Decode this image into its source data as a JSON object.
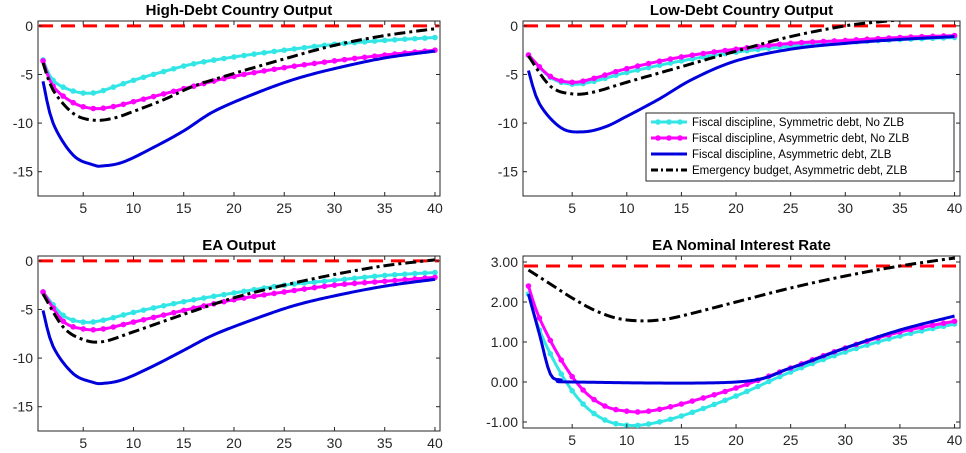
{
  "chart_data": [
    {
      "type": "line",
      "title": "High-Debt Country Output",
      "xlim": [
        0.5,
        40.5
      ],
      "ylim": [
        -17.5,
        0.5
      ],
      "xticks": [
        5,
        10,
        15,
        20,
        25,
        30,
        35,
        40
      ],
      "yticks": [
        0,
        -5,
        -10,
        -15
      ],
      "ytick_labels": [
        "0",
        "-5",
        "-10",
        "-15"
      ],
      "reference_line": {
        "y": 0,
        "color": "#ff0000",
        "style": "dashed"
      },
      "series": [
        {
          "name": "Fiscal discipline, Symmetric debt, No ZLB",
          "color": "#33e6e6",
          "markers": true,
          "points": [
            [
              1,
              -3.5
            ],
            [
              2,
              -5.6
            ],
            [
              4,
              -6.7
            ],
            [
              6,
              -6.9
            ],
            [
              8,
              -6.3
            ],
            [
              10,
              -5.6
            ],
            [
              13,
              -4.7
            ],
            [
              16,
              -3.9
            ],
            [
              20,
              -3.2
            ],
            [
              25,
              -2.5
            ],
            [
              30,
              -1.9
            ],
            [
              35,
              -1.5
            ],
            [
              40,
              -1.2
            ]
          ]
        },
        {
          "name": "Fiscal discipline, Asymmetric debt, No ZLB",
          "color": "#ff00ff",
          "markers": true,
          "points": [
            [
              1,
              -3.6
            ],
            [
              2,
              -6.2
            ],
            [
              4,
              -7.9
            ],
            [
              6,
              -8.5
            ],
            [
              8,
              -8.3
            ],
            [
              10,
              -7.8
            ],
            [
              13,
              -7.0
            ],
            [
              16,
              -6.2
            ],
            [
              20,
              -5.2
            ],
            [
              25,
              -4.3
            ],
            [
              30,
              -3.6
            ],
            [
              35,
              -3.0
            ],
            [
              40,
              -2.5
            ]
          ]
        },
        {
          "name": "Fiscal discipline, Asymmetric debt, ZLB",
          "color": "#0000dd",
          "markers": false,
          "points": [
            [
              1,
              -5.7
            ],
            [
              2,
              -10.0
            ],
            [
              4,
              -13.3
            ],
            [
              6,
              -14.3
            ],
            [
              7,
              -14.4
            ],
            [
              9,
              -14.0
            ],
            [
              12,
              -12.5
            ],
            [
              15,
              -10.8
            ],
            [
              18,
              -8.8
            ],
            [
              22,
              -7.0
            ],
            [
              26,
              -5.5
            ],
            [
              30,
              -4.4
            ],
            [
              35,
              -3.3
            ],
            [
              40,
              -2.6
            ]
          ]
        },
        {
          "name": "Emergency budget, Asymmetric debt, ZLB",
          "color": "#000000",
          "markers": false,
          "points": [
            [
              1,
              -3.8
            ],
            [
              2,
              -6.6
            ],
            [
              4,
              -9.0
            ],
            [
              6,
              -9.7
            ],
            [
              8,
              -9.5
            ],
            [
              10,
              -8.8
            ],
            [
              13,
              -7.6
            ],
            [
              16,
              -6.2
            ],
            [
              20,
              -4.9
            ],
            [
              25,
              -3.4
            ],
            [
              30,
              -2.0
            ],
            [
              35,
              -1.0
            ],
            [
              40,
              -0.3
            ]
          ]
        }
      ]
    },
    {
      "type": "line",
      "title": "Low-Debt Country Output",
      "xlim": [
        0.5,
        40.5
      ],
      "ylim": [
        -17.5,
        0.5
      ],
      "xticks": [
        5,
        10,
        15,
        20,
        25,
        30,
        35,
        40
      ],
      "yticks": [
        0,
        -5,
        -10,
        -15
      ],
      "ytick_labels": [
        "0",
        "-5",
        "-10",
        "-15"
      ],
      "reference_line": {
        "y": 0,
        "color": "#ff0000",
        "style": "dashed"
      },
      "legend": {
        "placement": "center-right",
        "entries": [
          "Fiscal discipline, Symmetric debt, No ZLB",
          "Fiscal discipline, Asymmetric debt, No ZLB",
          "Fiscal discipline, Asymmetric debt, ZLB",
          "Emergency budget, Asymmetric debt, ZLB"
        ]
      },
      "series": [
        {
          "name": "Fiscal discipline, Symmetric debt, No ZLB",
          "color": "#33e6e6",
          "markers": true,
          "points": [
            [
              1,
              -3.0
            ],
            [
              3,
              -5.3
            ],
            [
              5,
              -6.0
            ],
            [
              7,
              -5.7
            ],
            [
              10,
              -4.8
            ],
            [
              15,
              -3.6
            ],
            [
              20,
              -2.7
            ],
            [
              25,
              -2.1
            ],
            [
              30,
              -1.7
            ],
            [
              35,
              -1.4
            ],
            [
              40,
              -1.2
            ]
          ]
        },
        {
          "name": "Fiscal discipline, Asymmetric debt, No ZLB",
          "color": "#ff00ff",
          "markers": true,
          "points": [
            [
              1,
              -3.0
            ],
            [
              3,
              -5.2
            ],
            [
              5,
              -5.8
            ],
            [
              7,
              -5.4
            ],
            [
              10,
              -4.4
            ],
            [
              15,
              -3.2
            ],
            [
              20,
              -2.4
            ],
            [
              25,
              -1.8
            ],
            [
              30,
              -1.5
            ],
            [
              35,
              -1.2
            ],
            [
              40,
              -1.0
            ]
          ]
        },
        {
          "name": "Fiscal discipline, Asymmetric debt, ZLB",
          "color": "#0000dd",
          "markers": false,
          "points": [
            [
              1,
              -4.6
            ],
            [
              2,
              -8.0
            ],
            [
              4,
              -10.5
            ],
            [
              6,
              -10.9
            ],
            [
              8,
              -10.4
            ],
            [
              10,
              -9.3
            ],
            [
              13,
              -7.5
            ],
            [
              16,
              -5.5
            ],
            [
              20,
              -3.6
            ],
            [
              25,
              -2.4
            ],
            [
              30,
              -1.8
            ],
            [
              35,
              -1.4
            ],
            [
              40,
              -1.1
            ]
          ]
        },
        {
          "name": "Emergency budget, Asymmetric debt, ZLB",
          "color": "#000000",
          "markers": false,
          "points": [
            [
              1,
              -3.1
            ],
            [
              3,
              -6.2
            ],
            [
              5,
              -7.0
            ],
            [
              7,
              -6.8
            ],
            [
              10,
              -5.8
            ],
            [
              15,
              -4.2
            ],
            [
              20,
              -2.6
            ],
            [
              25,
              -1.1
            ],
            [
              30,
              0.0
            ],
            [
              33,
              0.4
            ],
            [
              35,
              0.6
            ],
            [
              40,
              0.9
            ]
          ]
        }
      ]
    },
    {
      "type": "line",
      "title": "EA Output",
      "xlim": [
        0.5,
        40.5
      ],
      "ylim": [
        -17.5,
        0.5
      ],
      "xticks": [
        5,
        10,
        15,
        20,
        25,
        30,
        35,
        40
      ],
      "yticks": [
        0,
        -5,
        -10,
        -15
      ],
      "ytick_labels": [
        "0",
        "-5",
        "-10",
        "-15"
      ],
      "reference_line": {
        "y": 0,
        "color": "#ff0000",
        "style": "dashed"
      },
      "series": [
        {
          "name": "Fiscal discipline, Symmetric debt, No ZLB",
          "color": "#33e6e6",
          "markers": true,
          "points": [
            [
              1,
              -3.2
            ],
            [
              3,
              -5.6
            ],
            [
              5,
              -6.3
            ],
            [
              7,
              -6.1
            ],
            [
              10,
              -5.3
            ],
            [
              15,
              -4.2
            ],
            [
              20,
              -3.3
            ],
            [
              25,
              -2.5
            ],
            [
              30,
              -2.0
            ],
            [
              35,
              -1.5
            ],
            [
              40,
              -1.2
            ]
          ]
        },
        {
          "name": "Fiscal discipline, Asymmetric debt, No ZLB",
          "color": "#ff00ff",
          "markers": true,
          "points": [
            [
              1,
              -3.2
            ],
            [
              3,
              -6.2
            ],
            [
              5,
              -7.0
            ],
            [
              7,
              -7.0
            ],
            [
              10,
              -6.3
            ],
            [
              15,
              -5.1
            ],
            [
              20,
              -4.0
            ],
            [
              25,
              -3.2
            ],
            [
              30,
              -2.5
            ],
            [
              35,
              -2.1
            ],
            [
              40,
              -1.7
            ]
          ]
        },
        {
          "name": "Fiscal discipline, Asymmetric debt, ZLB",
          "color": "#0000dd",
          "markers": false,
          "points": [
            [
              1,
              -5.1
            ],
            [
              2,
              -8.8
            ],
            [
              4,
              -11.6
            ],
            [
              6,
              -12.5
            ],
            [
              7,
              -12.6
            ],
            [
              9,
              -12.2
            ],
            [
              12,
              -10.8
            ],
            [
              15,
              -9.2
            ],
            [
              18,
              -7.6
            ],
            [
              22,
              -6.0
            ],
            [
              26,
              -4.6
            ],
            [
              30,
              -3.6
            ],
            [
              35,
              -2.6
            ],
            [
              40,
              -1.9
            ]
          ]
        },
        {
          "name": "Emergency budget, Asymmetric debt, ZLB",
          "color": "#000000",
          "markers": false,
          "points": [
            [
              1,
              -3.4
            ],
            [
              3,
              -6.8
            ],
            [
              5,
              -8.1
            ],
            [
              7,
              -8.3
            ],
            [
              10,
              -7.3
            ],
            [
              15,
              -5.5
            ],
            [
              20,
              -3.8
            ],
            [
              25,
              -2.5
            ],
            [
              30,
              -1.4
            ],
            [
              35,
              -0.5
            ],
            [
              40,
              0.1
            ]
          ]
        }
      ]
    },
    {
      "type": "line",
      "title": "EA Nominal Interest Rate",
      "xlim": [
        0.5,
        40.5
      ],
      "ylim": [
        -1.15,
        3.15
      ],
      "xticks": [
        5,
        10,
        15,
        20,
        25,
        30,
        35,
        40
      ],
      "yticks": [
        3,
        2,
        1,
        0,
        -1
      ],
      "ytick_labels": [
        "3.00",
        "2.00",
        "1.00",
        "0.00",
        "-1.00"
      ],
      "reference_line": {
        "y": 2.9,
        "color": "#ff0000",
        "style": "dashed"
      },
      "series": [
        {
          "name": "Fiscal discipline, Symmetric debt, No ZLB",
          "color": "#33e6e6",
          "markers": true,
          "points": [
            [
              1,
              2.2
            ],
            [
              2,
              1.3
            ],
            [
              4,
              0.2
            ],
            [
              6,
              -0.55
            ],
            [
              8,
              -0.95
            ],
            [
              10,
              -1.08
            ],
            [
              12,
              -1.05
            ],
            [
              15,
              -0.85
            ],
            [
              20,
              -0.35
            ],
            [
              25,
              0.25
            ],
            [
              30,
              0.75
            ],
            [
              35,
              1.15
            ],
            [
              40,
              1.45
            ]
          ]
        },
        {
          "name": "Fiscal discipline, Asymmetric debt, No ZLB",
          "color": "#ff00ff",
          "markers": true,
          "points": [
            [
              1,
              2.4
            ],
            [
              2,
              1.6
            ],
            [
              4,
              0.55
            ],
            [
              6,
              -0.2
            ],
            [
              8,
              -0.6
            ],
            [
              10,
              -0.73
            ],
            [
              12,
              -0.73
            ],
            [
              15,
              -0.55
            ],
            [
              20,
              -0.15
            ],
            [
              25,
              0.35
            ],
            [
              30,
              0.85
            ],
            [
              35,
              1.25
            ],
            [
              40,
              1.52
            ]
          ]
        },
        {
          "name": "Fiscal discipline, Asymmetric debt, ZLB",
          "color": "#0000dd",
          "markers": false,
          "points": [
            [
              1,
              2.2
            ],
            [
              2,
              1.2
            ],
            [
              3,
              0.2
            ],
            [
              4,
              0.05
            ],
            [
              5,
              0.0
            ],
            [
              20,
              0.0
            ],
            [
              25,
              0.35
            ],
            [
              30,
              0.85
            ],
            [
              35,
              1.3
            ],
            [
              40,
              1.65
            ]
          ]
        },
        {
          "name": "Emergency budget, Asymmetric debt, ZLB",
          "color": "#000000",
          "markers": false,
          "points": [
            [
              1,
              2.8
            ],
            [
              3,
              2.45
            ],
            [
              5,
              2.1
            ],
            [
              7,
              1.8
            ],
            [
              9,
              1.6
            ],
            [
              11,
              1.53
            ],
            [
              13,
              1.55
            ],
            [
              15,
              1.65
            ],
            [
              20,
              2.0
            ],
            [
              25,
              2.35
            ],
            [
              30,
              2.65
            ],
            [
              35,
              2.9
            ],
            [
              40,
              3.1
            ]
          ]
        }
      ]
    }
  ]
}
